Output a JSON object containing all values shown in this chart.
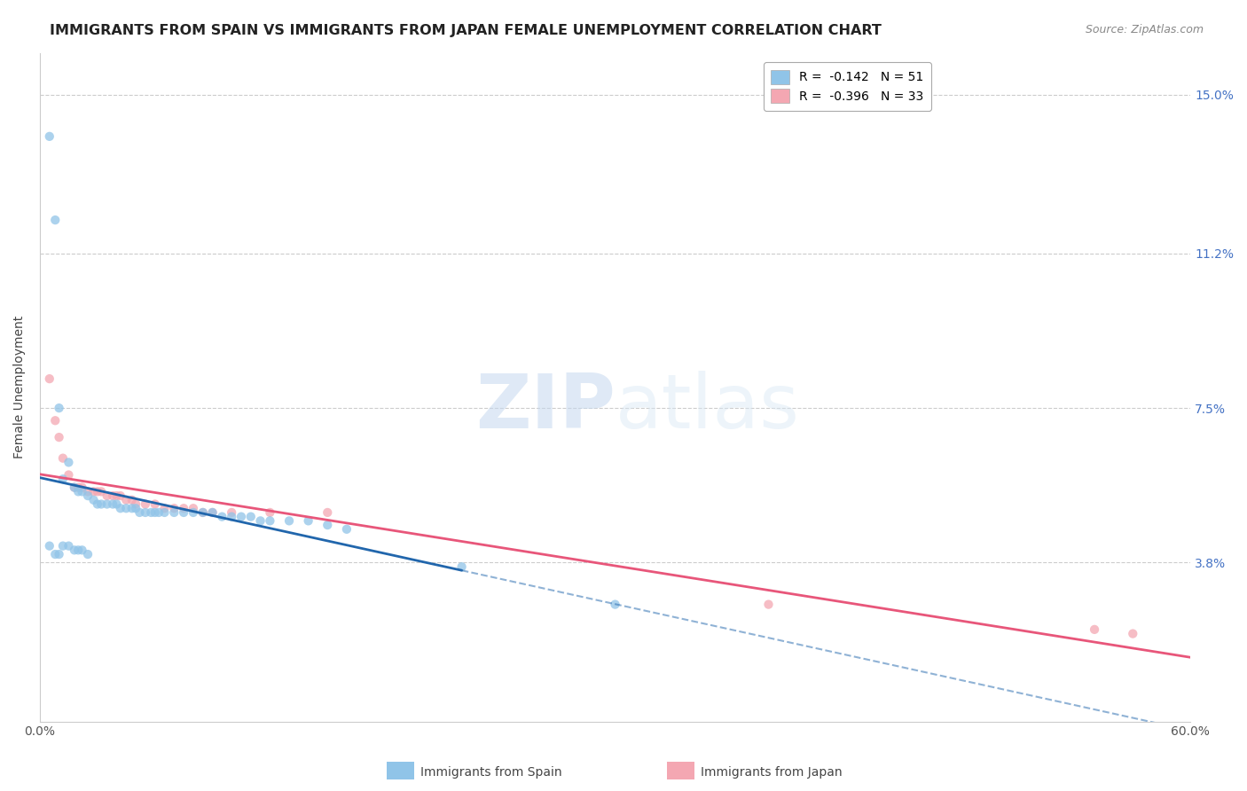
{
  "title": "IMMIGRANTS FROM SPAIN VS IMMIGRANTS FROM JAPAN FEMALE UNEMPLOYMENT CORRELATION CHART",
  "source_text": "Source: ZipAtlas.com",
  "ylabel": "Female Unemployment",
  "legend_entry1": "R =  -0.142   N = 51",
  "legend_entry2": "R =  -0.396   N = 33",
  "legend_label1": "Immigrants from Spain",
  "legend_label2": "Immigrants from Japan",
  "color_spain": "#90c4e8",
  "color_japan": "#f4a7b2",
  "trendline_spain": "#2166ac",
  "trendline_japan": "#e8567a",
  "xmin": 0.0,
  "xmax": 0.6,
  "ymin": 0.0,
  "ymax": 0.16,
  "ytick_vals": [
    0.038,
    0.075,
    0.112,
    0.15
  ],
  "ytick_labels": [
    "3.8%",
    "7.5%",
    "11.2%",
    "15.0%"
  ],
  "watermark_text": "ZIPatlas",
  "background_color": "#ffffff",
  "grid_color": "#cccccc",
  "spain_x": [
    0.005,
    0.008,
    0.01,
    0.012,
    0.015,
    0.018,
    0.02,
    0.022,
    0.025,
    0.028,
    0.03,
    0.032,
    0.035,
    0.038,
    0.04,
    0.042,
    0.045,
    0.048,
    0.05,
    0.052,
    0.055,
    0.058,
    0.06,
    0.062,
    0.065,
    0.07,
    0.075,
    0.08,
    0.085,
    0.09,
    0.095,
    0.1,
    0.105,
    0.11,
    0.115,
    0.12,
    0.13,
    0.14,
    0.15,
    0.16,
    0.005,
    0.008,
    0.01,
    0.012,
    0.015,
    0.018,
    0.02,
    0.022,
    0.025,
    0.22,
    0.3
  ],
  "spain_y": [
    0.14,
    0.12,
    0.075,
    0.058,
    0.062,
    0.056,
    0.055,
    0.055,
    0.054,
    0.053,
    0.052,
    0.052,
    0.052,
    0.052,
    0.052,
    0.051,
    0.051,
    0.051,
    0.051,
    0.05,
    0.05,
    0.05,
    0.05,
    0.05,
    0.05,
    0.05,
    0.05,
    0.05,
    0.05,
    0.05,
    0.049,
    0.049,
    0.049,
    0.049,
    0.048,
    0.048,
    0.048,
    0.048,
    0.047,
    0.046,
    0.042,
    0.04,
    0.04,
    0.042,
    0.042,
    0.041,
    0.041,
    0.041,
    0.04,
    0.037,
    0.028
  ],
  "japan_x": [
    0.005,
    0.008,
    0.01,
    0.012,
    0.015,
    0.018,
    0.02,
    0.022,
    0.025,
    0.028,
    0.03,
    0.032,
    0.035,
    0.038,
    0.04,
    0.042,
    0.045,
    0.048,
    0.05,
    0.055,
    0.06,
    0.065,
    0.07,
    0.075,
    0.08,
    0.085,
    0.09,
    0.1,
    0.12,
    0.15,
    0.38,
    0.55,
    0.57
  ],
  "japan_y": [
    0.082,
    0.072,
    0.068,
    0.063,
    0.059,
    0.056,
    0.056,
    0.056,
    0.055,
    0.055,
    0.055,
    0.055,
    0.054,
    0.054,
    0.054,
    0.054,
    0.053,
    0.053,
    0.052,
    0.052,
    0.052,
    0.051,
    0.051,
    0.051,
    0.051,
    0.05,
    0.05,
    0.05,
    0.05,
    0.05,
    0.028,
    0.022,
    0.021
  ],
  "title_fontsize": 11.5,
  "axis_label_fontsize": 10,
  "tick_fontsize": 10,
  "legend_fontsize": 10,
  "source_fontsize": 9
}
